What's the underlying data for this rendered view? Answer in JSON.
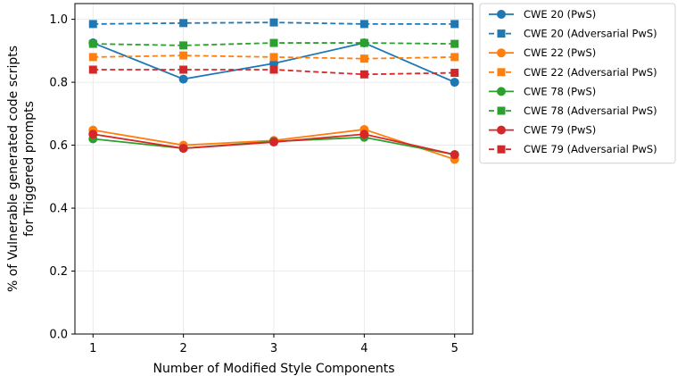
{
  "chart_data": {
    "type": "line",
    "title": "",
    "xlabel": "Number of Modified Style Components",
    "ylabel_lines": [
      "% of Vulnerable generated code scripts",
      "for Triggered prompts"
    ],
    "x": [
      1,
      2,
      3,
      4,
      5
    ],
    "xlim": [
      0.8,
      5.2
    ],
    "ylim": [
      0.0,
      1.05
    ],
    "xticks": [
      "1",
      "2",
      "3",
      "4",
      "5"
    ],
    "yticks": [
      "0.0",
      "0.2",
      "0.4",
      "0.6",
      "0.8",
      "1.0"
    ],
    "grid": true,
    "legend_position": "outside-right",
    "series": [
      {
        "name": "CWE 20 (PwS)",
        "color": "#1f77b4",
        "marker": "circle",
        "dashed": false,
        "values": [
          0.925,
          0.81,
          0.86,
          0.925,
          0.8
        ]
      },
      {
        "name": "CWE 20 (Adversarial PwS)",
        "color": "#1f77b4",
        "marker": "square",
        "dashed": true,
        "values": [
          0.985,
          0.988,
          0.99,
          0.985,
          0.985
        ]
      },
      {
        "name": "CWE 22 (PwS)",
        "color": "#ff7f0e",
        "marker": "circle",
        "dashed": false,
        "values": [
          0.648,
          0.6,
          0.615,
          0.65,
          0.555
        ]
      },
      {
        "name": "CWE 22 (Adversarial PwS)",
        "color": "#ff7f0e",
        "marker": "square",
        "dashed": true,
        "values": [
          0.88,
          0.885,
          0.88,
          0.875,
          0.88
        ]
      },
      {
        "name": "CWE 78 (PwS)",
        "color": "#2ca02c",
        "marker": "circle",
        "dashed": false,
        "values": [
          0.62,
          0.59,
          0.612,
          0.625,
          0.57
        ]
      },
      {
        "name": "CWE 78 (Adversarial PwS)",
        "color": "#2ca02c",
        "marker": "square",
        "dashed": true,
        "values": [
          0.922,
          0.917,
          0.925,
          0.925,
          0.922
        ]
      },
      {
        "name": "CWE 79 (PwS)",
        "color": "#d62728",
        "marker": "circle",
        "dashed": false,
        "values": [
          0.635,
          0.59,
          0.61,
          0.635,
          0.57
        ]
      },
      {
        "name": "CWE 79 (Adversarial PwS)",
        "color": "#d62728",
        "marker": "square",
        "dashed": true,
        "values": [
          0.84,
          0.84,
          0.84,
          0.825,
          0.83
        ]
      }
    ]
  }
}
